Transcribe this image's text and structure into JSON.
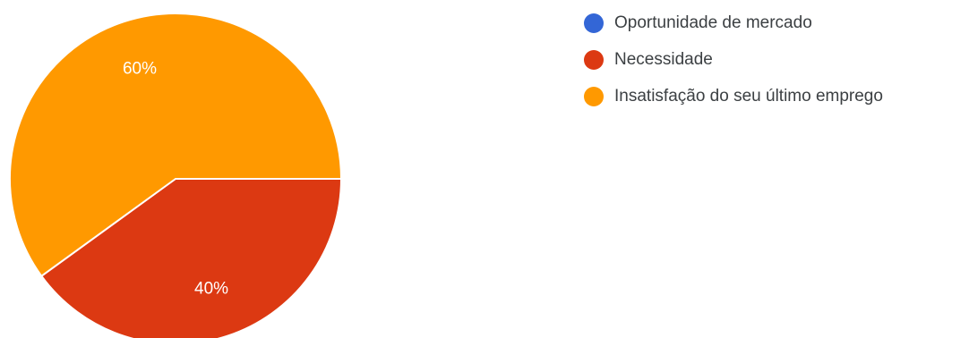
{
  "chart_data": {
    "type": "pie",
    "title": "",
    "categories": [
      "Oportunidade de mercado",
      "Necessidade",
      "Insatisfação do seu último emprego"
    ],
    "values": [
      0,
      40,
      60
    ],
    "data_labels": [
      "0%",
      "40%",
      "60%"
    ],
    "colors": [
      "#3366d6",
      "#dc3912",
      "#ff9900"
    ],
    "legend_position": "right"
  }
}
